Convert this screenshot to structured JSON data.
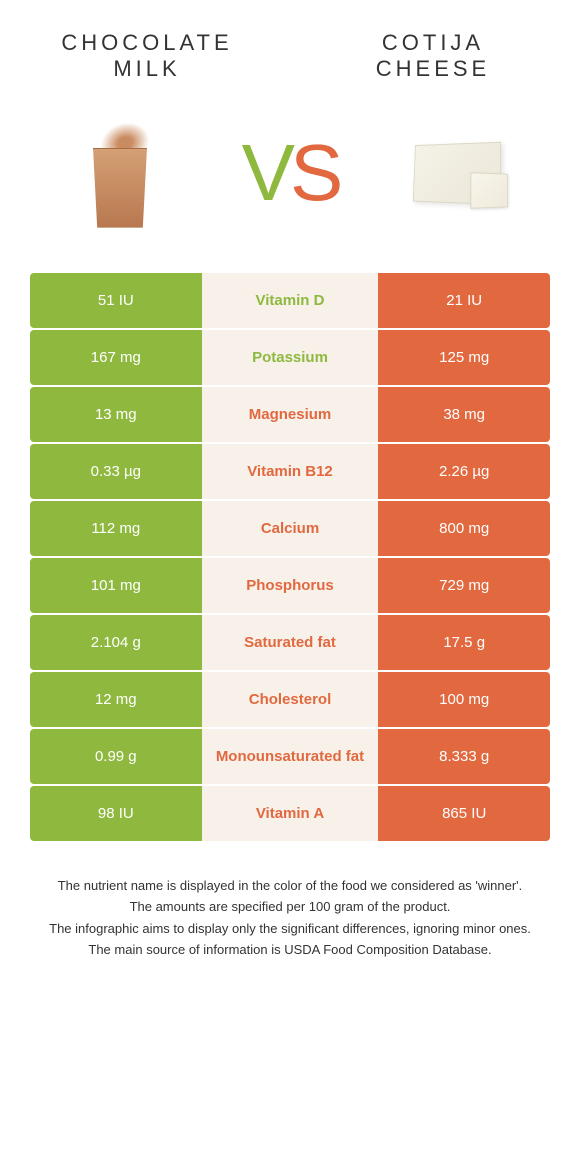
{
  "colors": {
    "left": "#8fb93e",
    "right": "#e2693f",
    "mid_bg": "#f7f1ea"
  },
  "header": {
    "left_title": "CHOCOLATE\nMILK",
    "right_title": "COTIJA\nCHEESE",
    "vs_v": "V",
    "vs_s": "S"
  },
  "rows": [
    {
      "left": "51 IU",
      "label": "Vitamin D",
      "right": "21 IU",
      "winner": "left"
    },
    {
      "left": "167 mg",
      "label": "Potassium",
      "right": "125 mg",
      "winner": "left"
    },
    {
      "left": "13 mg",
      "label": "Magnesium",
      "right": "38 mg",
      "winner": "right"
    },
    {
      "left": "0.33 µg",
      "label": "Vitamin B12",
      "right": "2.26 µg",
      "winner": "right"
    },
    {
      "left": "112 mg",
      "label": "Calcium",
      "right": "800 mg",
      "winner": "right"
    },
    {
      "left": "101 mg",
      "label": "Phosphorus",
      "right": "729 mg",
      "winner": "right"
    },
    {
      "left": "2.104 g",
      "label": "Saturated fat",
      "right": "17.5 g",
      "winner": "right"
    },
    {
      "left": "12 mg",
      "label": "Cholesterol",
      "right": "100 mg",
      "winner": "right"
    },
    {
      "left": "0.99 g",
      "label": "Monounsaturated fat",
      "right": "8.333 g",
      "winner": "right"
    },
    {
      "left": "98 IU",
      "label": "Vitamin A",
      "right": "865 IU",
      "winner": "right"
    }
  ],
  "footer": {
    "l1": "The nutrient name is displayed in the color of the food we considered as 'winner'.",
    "l2": "The amounts are specified per 100 gram of the product.",
    "l3": "The infographic aims to display only the significant differences, ignoring minor ones.",
    "l4": "The main source of information is USDA Food Composition Database."
  }
}
